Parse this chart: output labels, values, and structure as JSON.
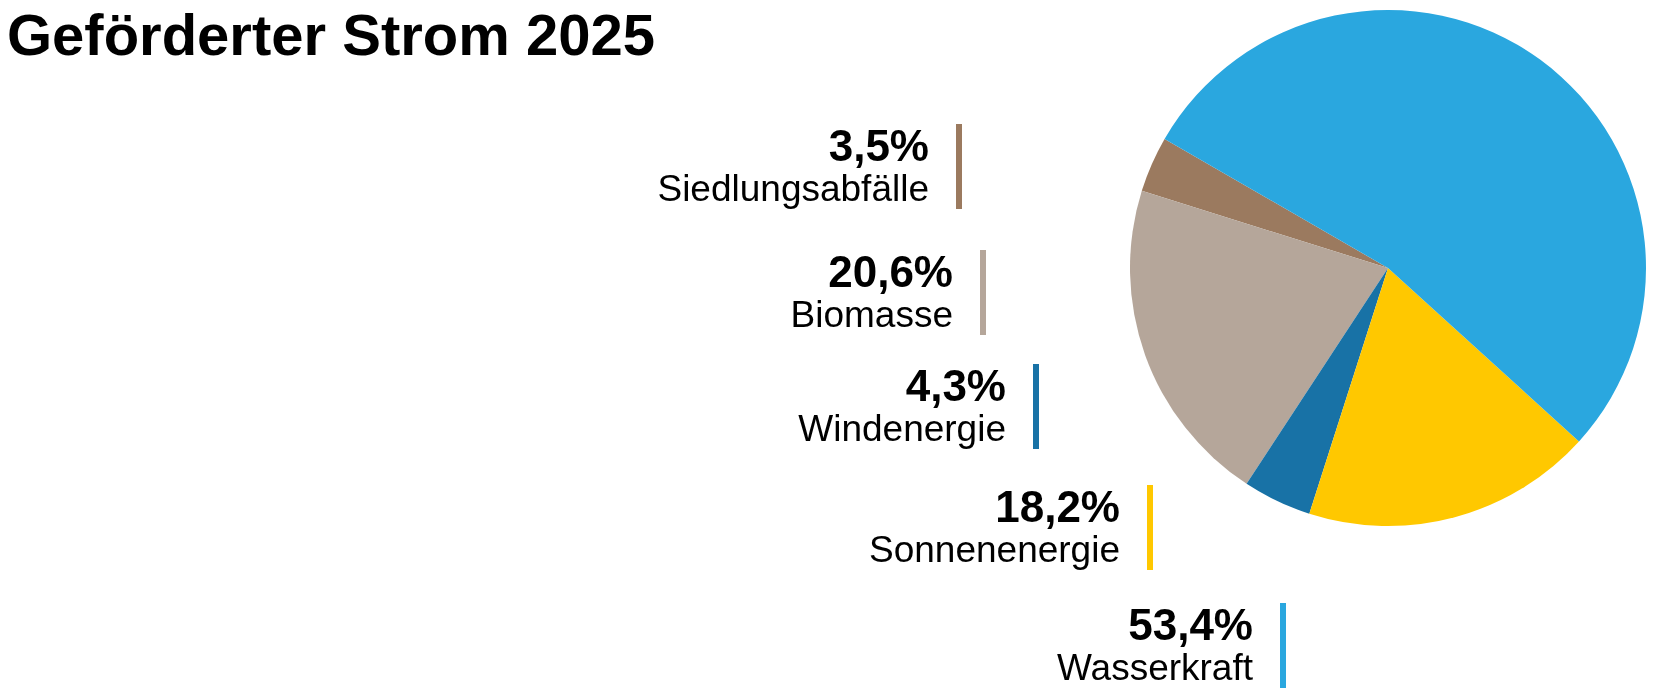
{
  "chart_data": {
    "type": "pie",
    "title": "Geförderter Strom 2025",
    "categories": [
      "Siedlungsabfälle",
      "Biomasse",
      "Windenergie",
      "Sonnenenergie",
      "Wasserkraft"
    ],
    "values": [
      3.5,
      20.6,
      4.3,
      18.2,
      53.4
    ],
    "value_labels": [
      "3,5%",
      "20,6%",
      "4,3%",
      "18,2%",
      "53,4%"
    ],
    "colors": [
      "#9b7a5f",
      "#b5a69a",
      "#1872a6",
      "#ffc800",
      "#2aa7df"
    ],
    "legend": "left"
  }
}
